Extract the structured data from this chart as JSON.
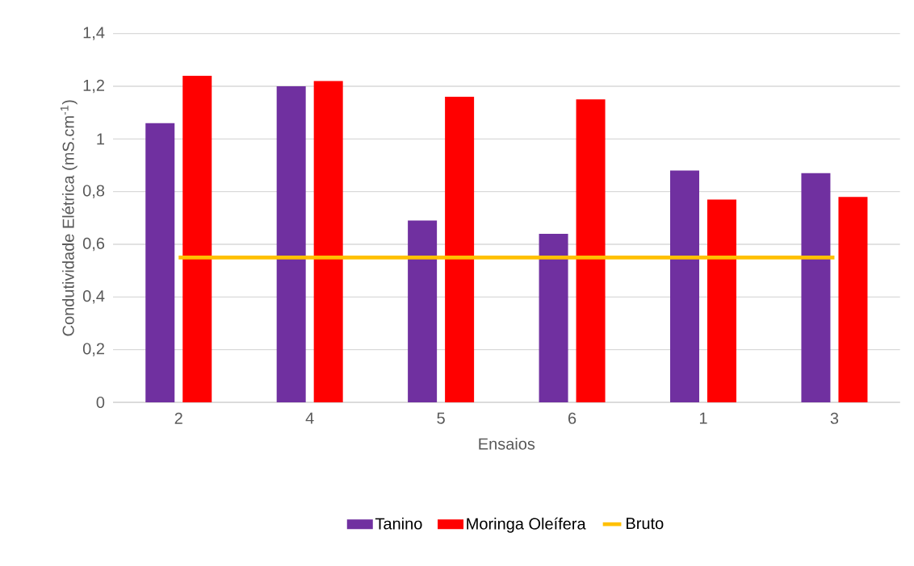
{
  "chart_data": {
    "type": "bar",
    "xlabel": "Ensaios",
    "ylabel": "Condutividade Elétrica (mS.cm$^{-1}$)",
    "categories": [
      "2",
      "4",
      "5",
      "6",
      "1",
      "3"
    ],
    "series": [
      {
        "name": "Tanino",
        "color": "#7030a0",
        "values": [
          1.06,
          1.2,
          0.69,
          0.64,
          0.88,
          0.87
        ]
      },
      {
        "name": "Moringa Oleífera",
        "color": "#ff0000",
        "values": [
          1.24,
          1.22,
          1.16,
          1.15,
          0.77,
          0.78
        ]
      },
      {
        "name": "Bruto",
        "type": "line",
        "color": "#ffc000",
        "marker": "none",
        "values": [
          0.55,
          0.55,
          0.55,
          0.55,
          0.55,
          0.55
        ]
      }
    ],
    "ylim": [
      0,
      1.4
    ],
    "yticks": [
      0,
      {
        "value": 0.2,
        "label": "0,2"
      },
      {
        "value": 0.4,
        "label": "0,4"
      },
      {
        "value": 0.6,
        "label": "0,6"
      },
      {
        "value": 0.8,
        "label": "0,8"
      },
      1,
      {
        "value": 1.2,
        "label": "1,2"
      },
      {
        "value": 1.4,
        "label": "1,4"
      }
    ],
    "grid": "y",
    "legend": "bottom"
  }
}
